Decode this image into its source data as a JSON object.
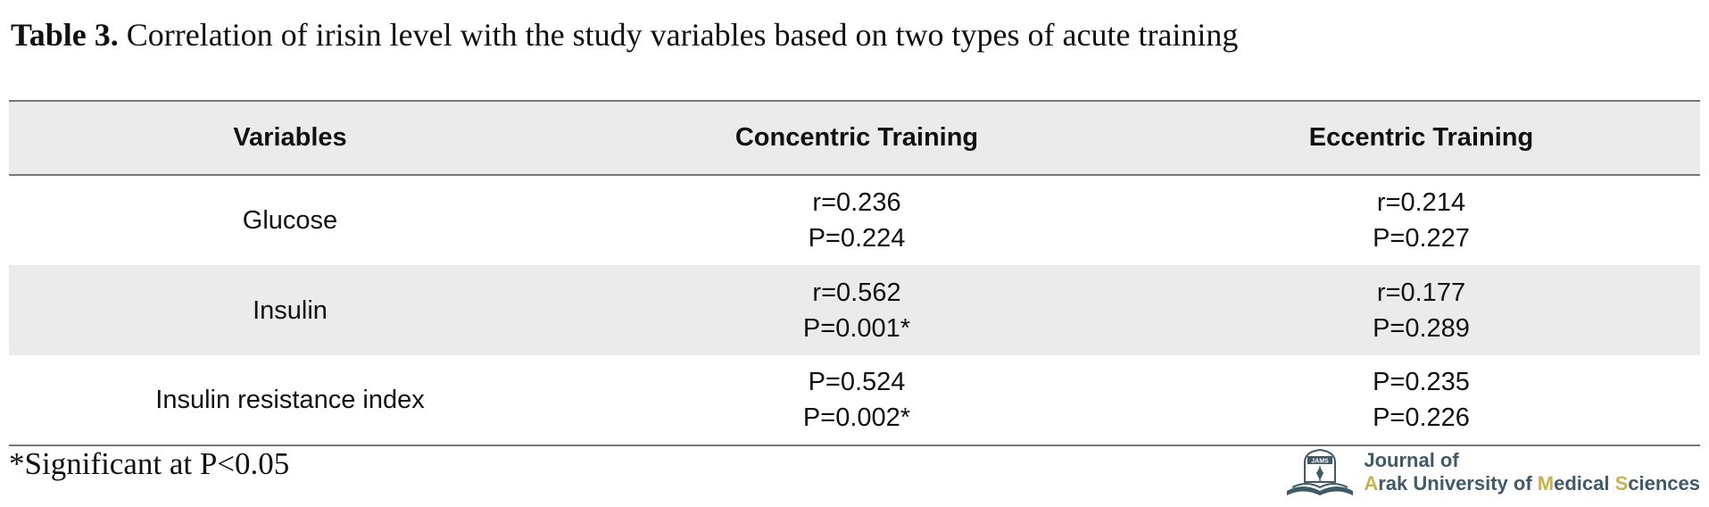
{
  "caption": {
    "label": "Table 3.",
    "text": "Correlation of irisin level with the study variables based on two types of acute training"
  },
  "table": {
    "headers": [
      "Variables",
      "Concentric Training",
      "Eccentric Training"
    ],
    "rows": [
      {
        "variable": "Glucose",
        "concentric": [
          "r=0.236",
          "P=0.224"
        ],
        "eccentric": [
          "r=0.214",
          "P=0.227"
        ]
      },
      {
        "variable": "Insulin",
        "concentric": [
          "r=0.562",
          "P=0.001*"
        ],
        "eccentric": [
          "r=0.177",
          "P=0.289"
        ]
      },
      {
        "variable": "Insulin resistance index",
        "concentric": [
          "P=0.524",
          "P=0.002*"
        ],
        "eccentric": [
          "P=0.235",
          "P=0.226"
        ]
      }
    ]
  },
  "footnote": "*Significant at P<0.05",
  "logo": {
    "emblem_text": "JAMS",
    "line1": "Journal of",
    "line2_parts": [
      {
        "text": "A",
        "highlight": true
      },
      {
        "text": "rak University of ",
        "highlight": false
      },
      {
        "text": "M",
        "highlight": true
      },
      {
        "text": "edical ",
        "highlight": false
      },
      {
        "text": "S",
        "highlight": true
      },
      {
        "text": "ciences",
        "highlight": false
      }
    ],
    "colors": {
      "primary": "#3f5a68",
      "accent": "#c9b24a"
    }
  }
}
